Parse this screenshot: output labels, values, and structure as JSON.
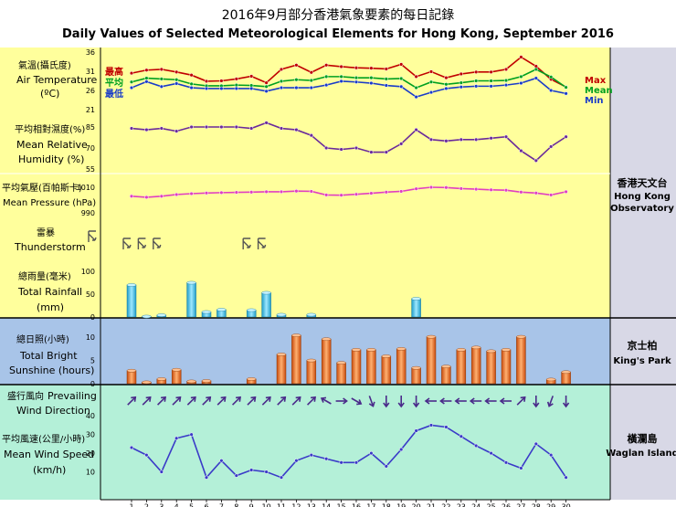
{
  "title_zh": "2016年9月部分香港氣象要素的每日記錄",
  "title_en": "Daily Values of Selected Meteorological Elements for Hong Kong, September 2016",
  "colors": {
    "panel_yellow": "#ffff9c",
    "panel_blue": "#a8c4e8",
    "panel_green": "#b4f0d8",
    "right_panel": "#d8d8e6",
    "max": "#c00000",
    "mean": "#00a020",
    "min": "#1a3cc8",
    "humidity": "#6a2a9a",
    "pressure": "#e040c0",
    "rain_bar": "#40c0e0",
    "sun_bar": "#e8641c",
    "wind": "#4a2a8a"
  },
  "stations": {
    "hko_zh": "香港天文台",
    "hko_en_1": "Hong Kong",
    "hko_en_2": "Observatory",
    "kp_zh": "京士柏",
    "kp_en": "King's Park",
    "wi_zh": "橫瀾島",
    "wi_en": "Waglan Island"
  },
  "chart_data": {
    "type": "line",
    "days": [
      1,
      2,
      3,
      4,
      5,
      6,
      7,
      8,
      9,
      10,
      11,
      12,
      13,
      14,
      15,
      16,
      17,
      18,
      19,
      20,
      21,
      22,
      23,
      24,
      25,
      26,
      27,
      28,
      29,
      30
    ],
    "temperature": {
      "label_zh": "氣溫(攝氏度)",
      "label_en_1": "Air Temperature",
      "label_en_2": "(ºC)",
      "ticks": [
        36,
        31,
        26,
        21
      ],
      "ylim": [
        21,
        36
      ],
      "legend": [
        {
          "zh": "最高",
          "en": "Max"
        },
        {
          "zh": "平均",
          "en": "Mean"
        },
        {
          "zh": "最低",
          "en": "Min"
        }
      ],
      "series": [
        {
          "name": "Max",
          "values": [
            30.5,
            31.3,
            31.5,
            30.8,
            30.0,
            28.4,
            28.5,
            29.0,
            29.7,
            28.0,
            31.5,
            32.6,
            30.7,
            32.6,
            32.2,
            31.9,
            31.8,
            31.6,
            32.8,
            29.6,
            30.9,
            29.3,
            30.3,
            30.8,
            30.8,
            31.5,
            34.7,
            32.3,
            28.9,
            26.9
          ]
        },
        {
          "name": "Mean",
          "values": [
            28.2,
            29.2,
            29.0,
            28.8,
            27.7,
            27.2,
            27.2,
            27.4,
            27.3,
            27.0,
            28.4,
            28.8,
            28.6,
            29.6,
            29.6,
            29.3,
            29.3,
            29.0,
            29.1,
            26.7,
            28.2,
            27.6,
            28.0,
            28.5,
            28.5,
            28.6,
            29.6,
            31.5,
            29.5,
            26.8
          ]
        },
        {
          "name": "Min",
          "values": [
            26.7,
            28.3,
            27.0,
            27.8,
            26.7,
            26.5,
            26.5,
            26.5,
            26.5,
            25.8,
            26.7,
            26.7,
            26.7,
            27.4,
            28.4,
            28.2,
            27.9,
            27.3,
            27.0,
            24.3,
            25.5,
            26.5,
            26.9,
            27.1,
            27.1,
            27.4,
            27.9,
            29.2,
            26.0,
            25.2
          ]
        }
      ]
    },
    "humidity": {
      "label_zh": "平均相對濕度(%)",
      "label_en_1": "Mean Relative",
      "label_en_2": "Humidity  (%)",
      "ticks": [
        85,
        70,
        55
      ],
      "ylim": [
        55,
        85
      ],
      "values": [
        84,
        83,
        84,
        82,
        85,
        85,
        85,
        85,
        84,
        88,
        84,
        83,
        79,
        70,
        69,
        70,
        67,
        67,
        73,
        83,
        76,
        75,
        76,
        76,
        77,
        78,
        68,
        61,
        71,
        78
      ]
    },
    "pressure": {
      "label_zh": "平均氣壓(百帕斯卡)",
      "label_en": "Mean Pressure (hPa)",
      "ticks": [
        1010,
        990
      ],
      "ylim": [
        990,
        1010
      ],
      "values": [
        1003.0,
        1002.2,
        1003.0,
        1004.3,
        1005.0,
        1005.5,
        1005.8,
        1006.0,
        1006.2,
        1006.5,
        1006.5,
        1007.0,
        1006.8,
        1004.0,
        1003.8,
        1004.5,
        1005.3,
        1006.2,
        1006.8,
        1008.8,
        1010.0,
        1009.8,
        1009.0,
        1008.5,
        1008.0,
        1007.7,
        1006.2,
        1005.5,
        1004.0,
        1006.5
      ]
    },
    "thunderstorm": {
      "label_zh": "雷暴",
      "label_en": "Thunderstorm",
      "days": [
        1,
        2,
        3,
        9,
        10
      ]
    },
    "rainfall": {
      "label_zh": "總雨量(毫米)",
      "label_en_1": "Total Rainfall",
      "label_en_2": "(mm)",
      "ticks": [
        100,
        50,
        0
      ],
      "ylim": [
        0,
        100
      ],
      "values": [
        70,
        1,
        4,
        0,
        75,
        11,
        16,
        0,
        15,
        53,
        5,
        0,
        5,
        0,
        0,
        0,
        0,
        0,
        0,
        40,
        0,
        0,
        0,
        0,
        0,
        0,
        0,
        0,
        0,
        0
      ]
    },
    "sunshine": {
      "label_zh": "總日照(小時)",
      "label_en_1": "Total Bright",
      "label_en_2": "Sunshine  (hours)",
      "ticks": [
        10,
        5,
        0
      ],
      "ylim": [
        0,
        12
      ],
      "values": [
        2.8,
        0.3,
        1.0,
        3.0,
        0.5,
        0.6,
        0,
        0,
        1.0,
        0,
        6.3,
        10.4,
        5.0,
        9.6,
        4.5,
        7.3,
        7.3,
        5.9,
        7.5,
        3.4,
        10.1,
        3.7,
        7.3,
        7.8,
        7.0,
        7.3,
        10.1,
        0,
        0.9,
        2.5
      ]
    },
    "wind_direction": {
      "label_zh": "盛行風向",
      "label_en_1": "Prevailing",
      "label_en_2": "Wind Direction",
      "angles_deg_from_north": [
        45,
        45,
        45,
        45,
        45,
        45,
        45,
        45,
        45,
        45,
        45,
        45,
        45,
        300,
        90,
        120,
        160,
        180,
        180,
        180,
        270,
        270,
        270,
        270,
        270,
        270,
        45,
        180,
        200,
        180
      ]
    },
    "wind_speed": {
      "label_zh": "平均風速(公里/小時)",
      "label_en_1": "Mean Wind Speed",
      "label_en_2": "(km/h)",
      "ticks": [
        40,
        30,
        20,
        10
      ],
      "ylim": [
        0,
        45
      ],
      "values": [
        23,
        19,
        10,
        28,
        30,
        7,
        16,
        8,
        11,
        10,
        7,
        16,
        19,
        17,
        15,
        15,
        20,
        13,
        22,
        32,
        35,
        34,
        29,
        24,
        20,
        15,
        12,
        25,
        19,
        7
      ]
    }
  }
}
